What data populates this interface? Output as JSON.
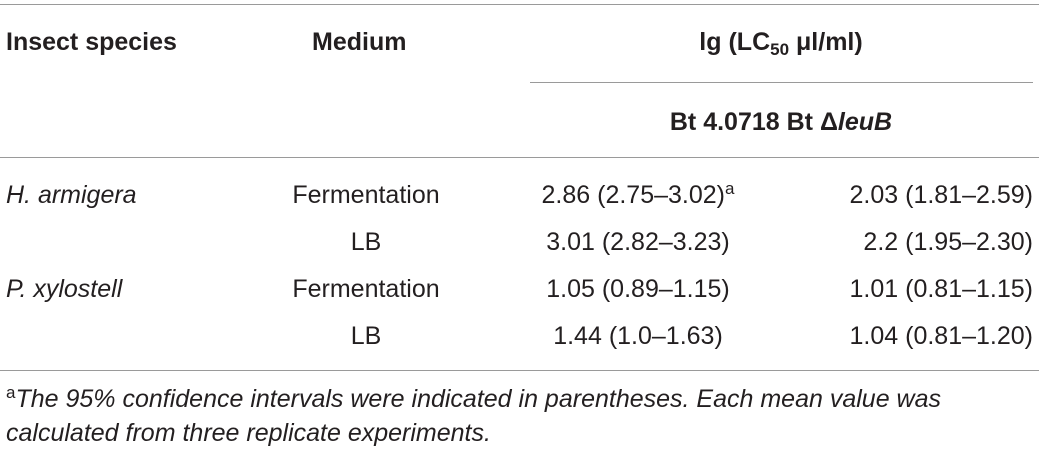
{
  "header": {
    "col_species": "Insect species",
    "col_medium": "Medium",
    "col_lg_prefix": "lg (LC",
    "col_lg_sub": "50",
    "col_lg_suffix": " μl/ml)",
    "strain_1": "Bt 4.0718",
    "strain_2_prefix": "Bt Δ",
    "strain_2_gene": "leuB"
  },
  "rows": [
    {
      "species": "H. armigera",
      "medium": "Fermentation",
      "val1": "2.86 (2.75–3.02)",
      "val1_sup": "a",
      "val2": "2.03 (1.81–2.59)"
    },
    {
      "species": "",
      "medium": "LB",
      "val1": "3.01 (2.82–3.23)",
      "val1_sup": "",
      "val2": "2.2 (1.95–2.30)"
    },
    {
      "species": "P. xylostell",
      "medium": "Fermentation",
      "val1": "1.05 (0.89–1.15)",
      "val1_sup": "",
      "val2": "1.01 (0.81–1.15)"
    },
    {
      "species": "",
      "medium": "LB",
      "val1": "1.44 (1.0–1.63)",
      "val1_sup": "",
      "val2": "1.04 (0.81–1.20)"
    }
  ],
  "footnote": {
    "marker": "a",
    "text": "The 95% confidence intervals were indicated in parentheses. Each mean value was calculated from three replicate experiments."
  }
}
